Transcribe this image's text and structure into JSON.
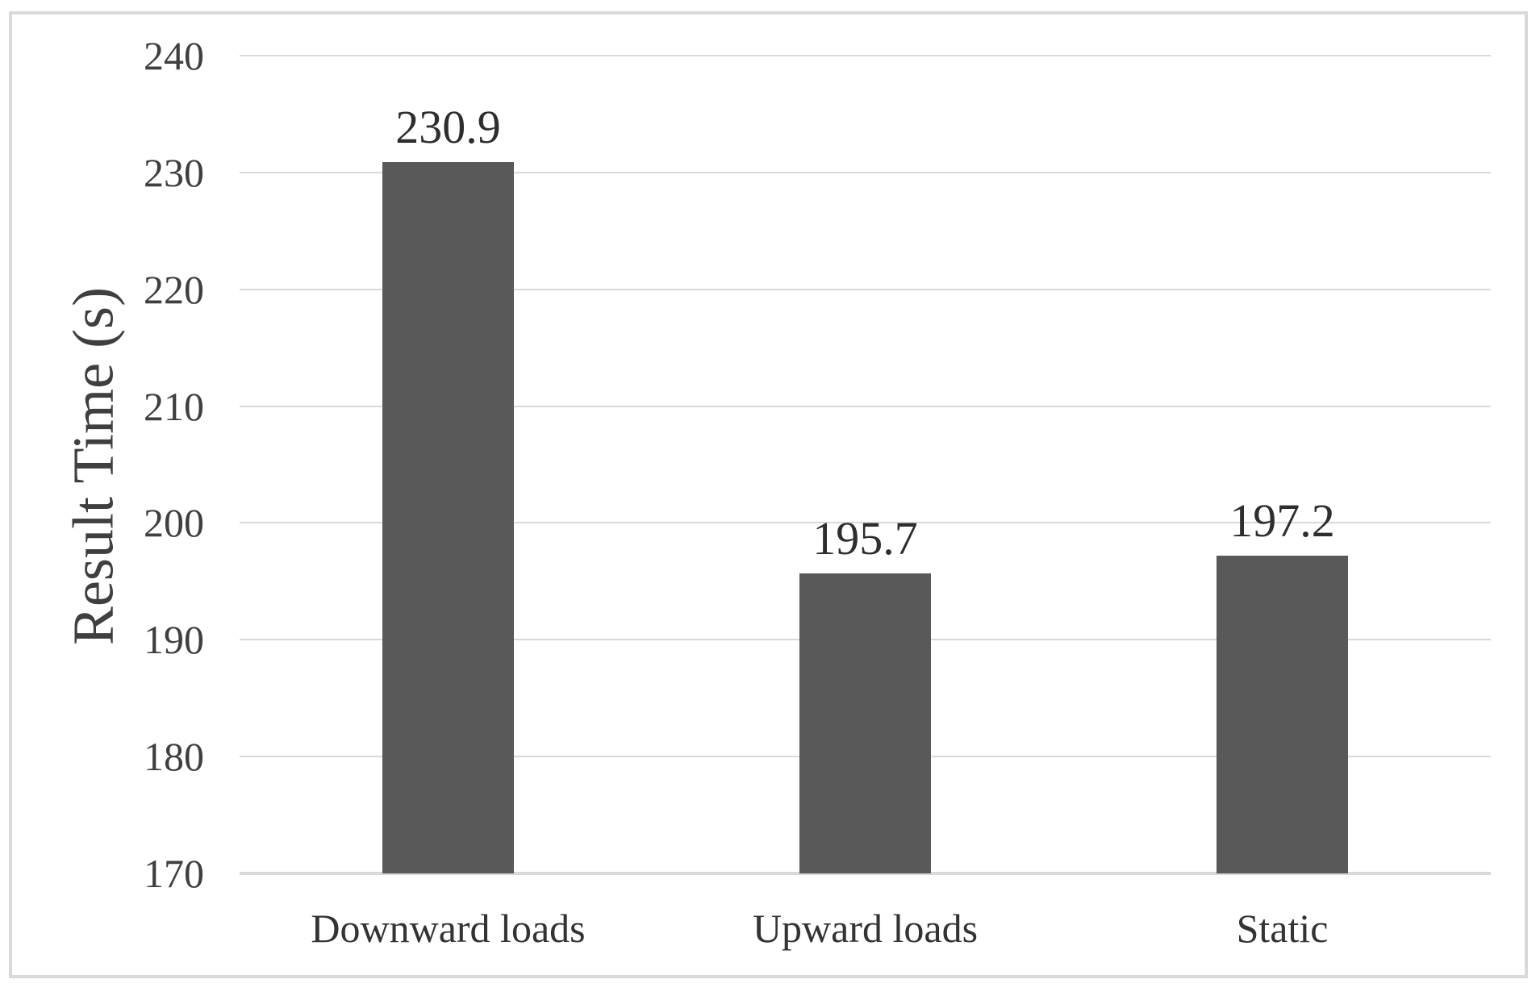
{
  "chart_data": {
    "type": "bar",
    "categories": [
      "Downward loads",
      "Upward loads",
      "Static"
    ],
    "values": [
      230.9,
      195.7,
      197.2
    ],
    "data_labels": [
      "230.9",
      "195.7",
      "197.2"
    ],
    "title": "",
    "xlabel": "",
    "ylabel": "Result Time (s)",
    "ylim": [
      170,
      240
    ],
    "ytick_step": 10,
    "yticks": [
      240,
      230,
      220,
      210,
      200,
      190,
      180,
      170
    ],
    "grid": true,
    "legend_position": "none",
    "bar_color": "#595959",
    "gridline_color": "#d9d9d9",
    "frame_border_color": "#d9d9d9",
    "tick_text_color": "#3f3f3f",
    "data_label_text_color": "#2e2e2e",
    "category_text_color": "#333333",
    "background_color": "#ffffff"
  }
}
